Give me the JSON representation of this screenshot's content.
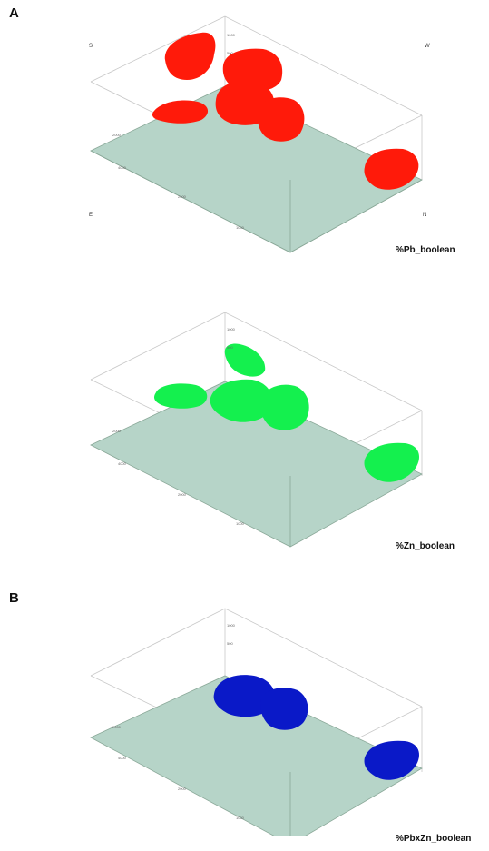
{
  "panels": [
    {
      "letter": "A",
      "views": [
        {
          "caption": "%Pb_boolean",
          "directions": {
            "s": "S",
            "w": "W",
            "e": "E",
            "n": "N"
          },
          "body_color": "#ff1a0a"
        },
        {
          "caption": "%Zn_boolean",
          "directions": null,
          "body_color": "#14f04e"
        }
      ]
    },
    {
      "letter": "B",
      "views": [
        {
          "caption": "%PbxZn_boolean",
          "directions": null,
          "body_color": "#0a19c8"
        }
      ]
    }
  ],
  "colors": {
    "base_plane": "#b6d4c8",
    "box_edges": "#c8c8c8",
    "base_edges": "#8aa898"
  }
}
